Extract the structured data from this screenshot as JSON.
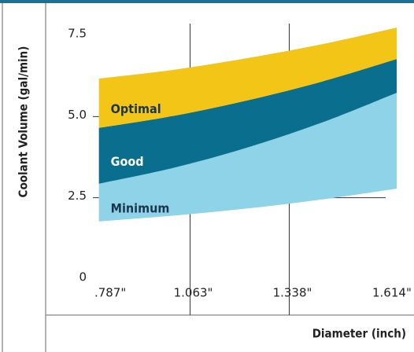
{
  "chart_data": {
    "type": "band",
    "y_label": "Coolant Volume (gal/min)",
    "x_label": "Diameter (inch)",
    "x": [
      0.81,
      1.017,
      1.223,
      1.43,
      1.636
    ],
    "series": [
      {
        "name": "Minimum",
        "color": "#8fd3e8",
        "text_color": "#1b3550",
        "low": [
          1.77,
          1.95,
          2.17,
          2.45,
          2.78
        ],
        "high": [
          2.93,
          3.42,
          4.05,
          4.82,
          5.73
        ]
      },
      {
        "name": "Good",
        "color": "#0a6e8f",
        "text_color": "#ffffff",
        "low": [
          2.93,
          3.42,
          4.05,
          4.82,
          5.73
        ],
        "high": [
          4.65,
          5.02,
          5.5,
          6.08,
          6.77
        ]
      },
      {
        "name": "Optimal",
        "color": "#f2c516",
        "text_color": "#1b3550",
        "low": [
          4.65,
          5.02,
          5.5,
          6.08,
          6.77
        ],
        "high": [
          6.17,
          6.44,
          6.8,
          7.23,
          7.74
        ]
      }
    ],
    "xlim": [
      0.754,
      1.66
    ],
    "xticks": [
      {
        "value": 0.787,
        "label": ".787\""
      },
      {
        "value": 1.063,
        "label": "1.063\""
      },
      {
        "value": 1.338,
        "label": "1.338\""
      },
      {
        "value": 1.614,
        "label": "1.614\""
      }
    ],
    "ylim": [
      0,
      7.5
    ],
    "yticks": [
      0,
      2.5,
      {
        "value": 5.0,
        "label": "5.0"
      },
      7.5
    ],
    "grid": true
  }
}
